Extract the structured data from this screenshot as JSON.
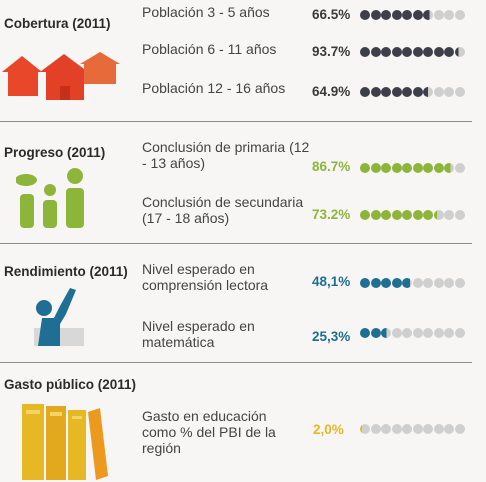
{
  "sections": [
    {
      "title": "Cobertura (2011)",
      "color": "#3d3f4a",
      "rows": [
        {
          "label": "Población 3 - 5 años",
          "pct": "66.5%",
          "value": 66.5
        },
        {
          "label": "Población 6 - 11 años",
          "pct": "93.7%",
          "value": 93.7
        },
        {
          "label": "Población 12 - 16 años",
          "pct": "64.9%",
          "value": 64.9
        }
      ]
    },
    {
      "title": "Progreso (2011)",
      "color": "#8db53a",
      "rows": [
        {
          "label": "Conclusión de primaria (12 - 13 años)",
          "pct": "86.7%",
          "value": 86.7
        },
        {
          "label": "Conclusión de secundaria (17 - 18 años)",
          "pct": "73.2%",
          "value": 73.2
        }
      ]
    },
    {
      "title": "Rendimiento (2011)",
      "color": "#1f6e93",
      "rows": [
        {
          "label": "Nivel esperado en comprensión lectora",
          "pct": "48,1%",
          "value": 48.1
        },
        {
          "label": "Nivel esperado en matemática",
          "pct": "25,3%",
          "value": 25.3
        }
      ]
    },
    {
      "title": "Gasto público (2011)",
      "color": "#e6b824",
      "rows": [
        {
          "label": "Gasto en educación como % del PBI de la región",
          "pct": "2,0%",
          "value": 2.0
        }
      ]
    }
  ],
  "empty_dot_color": "#cfcfcf"
}
